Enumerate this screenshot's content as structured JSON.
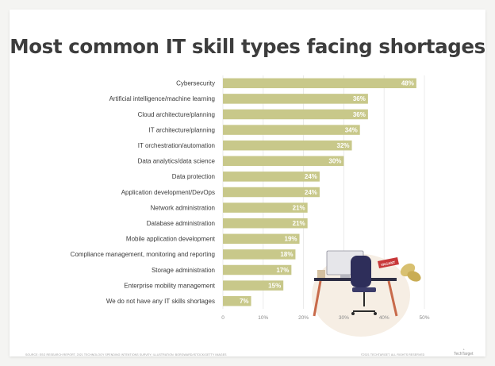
{
  "chart_data": {
    "type": "bar",
    "orientation": "horizontal",
    "title": "Most common IT skill types facing shortages",
    "categories": [
      "Cybersecurity",
      "Artificial intelligence/machine learning",
      "Cloud architecture/planning",
      "IT architecture/planning",
      "IT orchestration/automation",
      "Data analytics/data science",
      "Data protection",
      "Application development/DevOps",
      "Network administration",
      "Database administration",
      "Mobile application development",
      "Compliance management, monitoring and reporting",
      "Storage administration",
      "Enterprise mobility management",
      "We do not have any IT skills shortages"
    ],
    "values": [
      48,
      36,
      36,
      34,
      32,
      30,
      24,
      24,
      21,
      21,
      19,
      18,
      17,
      15,
      7
    ],
    "value_labels": [
      "48%",
      "36%",
      "36%",
      "34%",
      "32%",
      "30%",
      "24%",
      "24%",
      "21%",
      "21%",
      "19%",
      "18%",
      "17%",
      "15%",
      "7%"
    ],
    "xlim": [
      0,
      50
    ],
    "x_ticks": [
      0,
      10,
      20,
      30,
      40,
      50
    ],
    "x_tick_labels": [
      "0",
      "10%",
      "20%",
      "30%",
      "40%",
      "50%"
    ],
    "grid": true,
    "bar_color": "#c8c88a",
    "grid_color": "#e6e6e6"
  },
  "footer": {
    "source": "SOURCE: ESG RESEARCH REPORT, 2021 TECHNOLOGY SPENDING INTENTIONS SURVEY; ILLUSTRATION: BORGWARD/ISTOCK/GETTY IMAGES",
    "rights": "©2021 TECHTARGET. ALL RIGHTS RESERVED",
    "brand": "TechTarget"
  },
  "illustration": {
    "sign_text": "VACANT"
  }
}
